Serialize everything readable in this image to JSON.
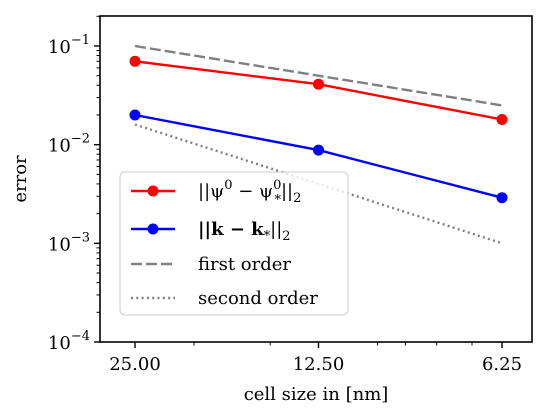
{
  "chart_data": {
    "type": "line",
    "title": "",
    "xlabel": "cell size in [nm]",
    "ylabel": "error",
    "x_scale": "log",
    "x_direction": "decreasing",
    "y_scale": "log",
    "ylim": [
      0.0001,
      0.2
    ],
    "grid": false,
    "legend_position": "lower-left",
    "x_ticks": [
      {
        "value": 25,
        "label": "25.00"
      },
      {
        "value": 12.5,
        "label": "12.50"
      },
      {
        "value": 6.25,
        "label": "6.25"
      }
    ],
    "y_ticks": [
      {
        "value": 0.1,
        "base": "10",
        "exp": "−1"
      },
      {
        "value": 0.01,
        "base": "10",
        "exp": "−2"
      },
      {
        "value": 0.001,
        "base": "10",
        "exp": "−3"
      },
      {
        "value": 0.0001,
        "base": "10",
        "exp": "−4"
      }
    ],
    "series": [
      {
        "name": "||ψ0 − ψ0*||2",
        "legend": {
          "pre": "||ψ",
          "sup": "0",
          "mid": " − ψ",
          "sup2": "0",
          "sub2": "*",
          "post": "||",
          "sub": "2"
        },
        "color": "#ff0000",
        "style": "solid",
        "marker": "circle",
        "x": [
          25,
          12.5,
          6.25
        ],
        "y": [
          0.07,
          0.041,
          0.018
        ]
      },
      {
        "name": "||k − k*||2",
        "legend": {
          "pre": "||k − k",
          "sub_inline": "*",
          "post": "||",
          "sub": "2"
        },
        "color": "#0000ff",
        "style": "solid",
        "marker": "circle",
        "x": [
          25,
          12.5,
          6.25
        ],
        "y": [
          0.02,
          0.0088,
          0.0029
        ]
      },
      {
        "name": "first order",
        "color": "#808080",
        "style": "dashed",
        "marker": "none",
        "x": [
          25,
          12.5,
          6.25
        ],
        "y": [
          0.1,
          0.05,
          0.025
        ]
      },
      {
        "name": "second order",
        "color": "#808080",
        "style": "dotted",
        "marker": "none",
        "x": [
          25,
          12.5,
          6.25
        ],
        "y": [
          0.016,
          0.004,
          0.001
        ]
      }
    ]
  }
}
